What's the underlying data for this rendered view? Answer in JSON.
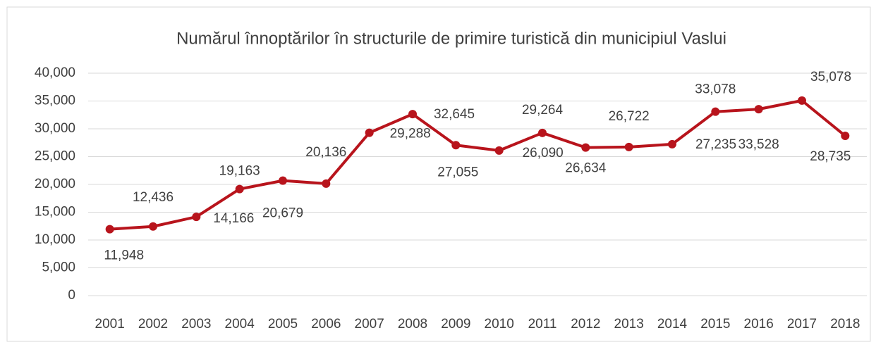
{
  "chart_data": {
    "type": "line",
    "title": "Numărul înnoptărilor în structurile de primire turistică din municipiul Vaslui",
    "categories": [
      "2001",
      "2002",
      "2003",
      "2004",
      "2005",
      "2006",
      "2007",
      "2008",
      "2009",
      "2010",
      "2011",
      "2012",
      "2013",
      "2014",
      "2015",
      "2016",
      "2017",
      "2018"
    ],
    "series": [
      {
        "color": "#b8141c",
        "values": [
          11948,
          12436,
          14166,
          19163,
          20679,
          20136,
          29288,
          32645,
          27055,
          26090,
          29264,
          26634,
          26722,
          27235,
          33078,
          33528,
          35078,
          28735
        ],
        "value_labels": [
          "11,948",
          "12,436",
          "14,166",
          "19,163",
          "20,679",
          "20,136",
          "29,288",
          "32,645",
          "27,055",
          "26,090",
          "29,264",
          "26,634",
          "26,722",
          "27,235",
          "33,078",
          "33,528",
          "35,078",
          "28,735"
        ]
      }
    ],
    "ylim": [
      0,
      40000
    ],
    "yticks": [
      0,
      {
        "value": 5000,
        "label": "5,000"
      },
      {
        "value": 10000,
        "label": "10,000"
      },
      {
        "value": 15000,
        "label": "15,000"
      },
      {
        "value": 20000,
        "label": "20,000"
      },
      {
        "value": 25000,
        "label": "25,000"
      },
      {
        "value": 30000,
        "label": "30,000"
      },
      {
        "value": 35000,
        "label": "35,000"
      },
      {
        "value": 40000,
        "label": "40,000"
      }
    ],
    "grid": true
  }
}
